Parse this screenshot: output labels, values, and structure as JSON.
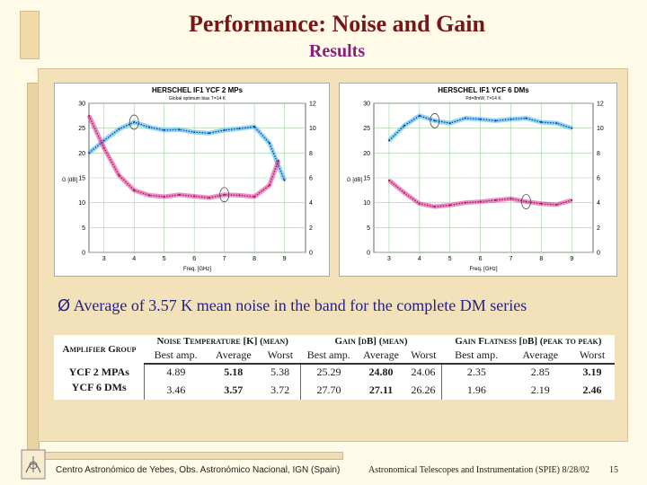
{
  "slide": {
    "title": "Performance: Noise and Gain",
    "subtitle": "Results",
    "bullet_marker": "Ø",
    "bullet_text": "Average of  3.57 K mean noise in the band for the complete DM series"
  },
  "chart_data": [
    {
      "type": "line",
      "title": "HERSCHEL IF1 YCF 2 MPs",
      "subtitle": "Global optimum bias  T=14 K",
      "xlabel": "Freq. [GHz]",
      "ylabel_left": "G [dB]",
      "xlim": [
        2.5,
        9.7
      ],
      "x_ticks": [
        3,
        4,
        5,
        6,
        7,
        8,
        9
      ],
      "ylim_left": [
        0,
        30
      ],
      "y_ticks_left": [
        0,
        5,
        10,
        15,
        20,
        25,
        30
      ],
      "ylim_right": [
        0,
        12
      ],
      "y_ticks_right": [
        0,
        2,
        4,
        6,
        8,
        10,
        12
      ],
      "colors": {
        "gain": "#2bb6e8",
        "noise": "#e0308f"
      },
      "series": [
        {
          "x": [
            2.5,
            3.0,
            3.5,
            4.0,
            4.5,
            5.0,
            5.5,
            6.0,
            6.5,
            7.0,
            7.5,
            8.0,
            8.5,
            9.0
          ],
          "values": [
            20,
            22.5,
            24.8,
            26.2,
            25.2,
            24.6,
            24.7,
            24.2,
            24.0,
            24.6,
            24.9,
            25.3,
            22.0,
            14.5
          ]
        },
        {
          "x": [
            2.5,
            3.0,
            3.5,
            4.0,
            4.5,
            5.0,
            5.5,
            6.0,
            6.5,
            7.0,
            7.5,
            8.0,
            8.5,
            8.8
          ],
          "values": [
            27.5,
            21.0,
            15.5,
            12.5,
            11.5,
            11.2,
            11.6,
            11.3,
            11.0,
            11.6,
            11.5,
            11.2,
            13.5,
            18.5
          ]
        }
      ]
    },
    {
      "type": "line",
      "title": "HERSCHEL IF1 YCF 6 DMs",
      "subtitle": "Pd=8mW, T=14 K",
      "xlabel": "Freq. [GHz]",
      "ylabel_left": "G [dB]",
      "xlim": [
        2.5,
        9.7
      ],
      "x_ticks": [
        3,
        4,
        5,
        6,
        7,
        8,
        9
      ],
      "ylim_left": [
        0,
        30
      ],
      "y_ticks_left": [
        0,
        5,
        10,
        15,
        20,
        25,
        30
      ],
      "ylim_right": [
        0,
        12
      ],
      "y_ticks_right": [
        0,
        2,
        4,
        6,
        8,
        10,
        12
      ],
      "colors": {
        "gain": "#2bb6e8",
        "noise": "#e0308f"
      },
      "series": [
        {
          "x": [
            3.0,
            3.5,
            4.0,
            4.5,
            5.0,
            5.5,
            6.0,
            6.5,
            7.0,
            7.5,
            8.0,
            8.5,
            9.0
          ],
          "values": [
            22.5,
            25.5,
            27.5,
            26.5,
            26.0,
            27.0,
            26.8,
            26.5,
            26.8,
            27.0,
            26.2,
            26.0,
            25.0
          ]
        },
        {
          "x": [
            3.0,
            3.5,
            4.0,
            4.5,
            5.0,
            5.5,
            6.0,
            6.5,
            7.0,
            7.5,
            8.0,
            8.5,
            9.0
          ],
          "values": [
            14.5,
            12.0,
            9.8,
            9.2,
            9.5,
            10.0,
            10.2,
            10.5,
            10.8,
            10.2,
            9.8,
            9.6,
            10.5
          ]
        }
      ]
    }
  ],
  "table": {
    "header_groups": [
      "Amplifier Group",
      "Noise Temperature [K] (mean)",
      "Gain [dB] (mean)",
      "Gain Flatness [dB] (peak to peak)"
    ],
    "sub_headers": [
      "Best amp.",
      "Average",
      "Worst",
      "Best amp.",
      "Average",
      "Worst",
      "Best amp.",
      "Average",
      "Worst"
    ],
    "rows": [
      {
        "name": "YCF 2 MPAs",
        "values": [
          "4.89",
          "5.18",
          "5.38",
          "25.29",
          "24.80",
          "24.06",
          "2.35",
          "2.85",
          "3.19"
        ]
      },
      {
        "name": "YCF 6 DMs",
        "values": [
          "3.46",
          "3.57",
          "3.72",
          "27.70",
          "27.11",
          "26.26",
          "1.96",
          "2.19",
          "2.46"
        ]
      }
    ]
  },
  "footer": {
    "left": "Centro Astronómico de Yebes, Obs. Astronómico Nacional, IGN (Spain)",
    "right": "Astronomical Telescopes and Instrumentation (SPIE)  8/28/02",
    "page": "15"
  }
}
